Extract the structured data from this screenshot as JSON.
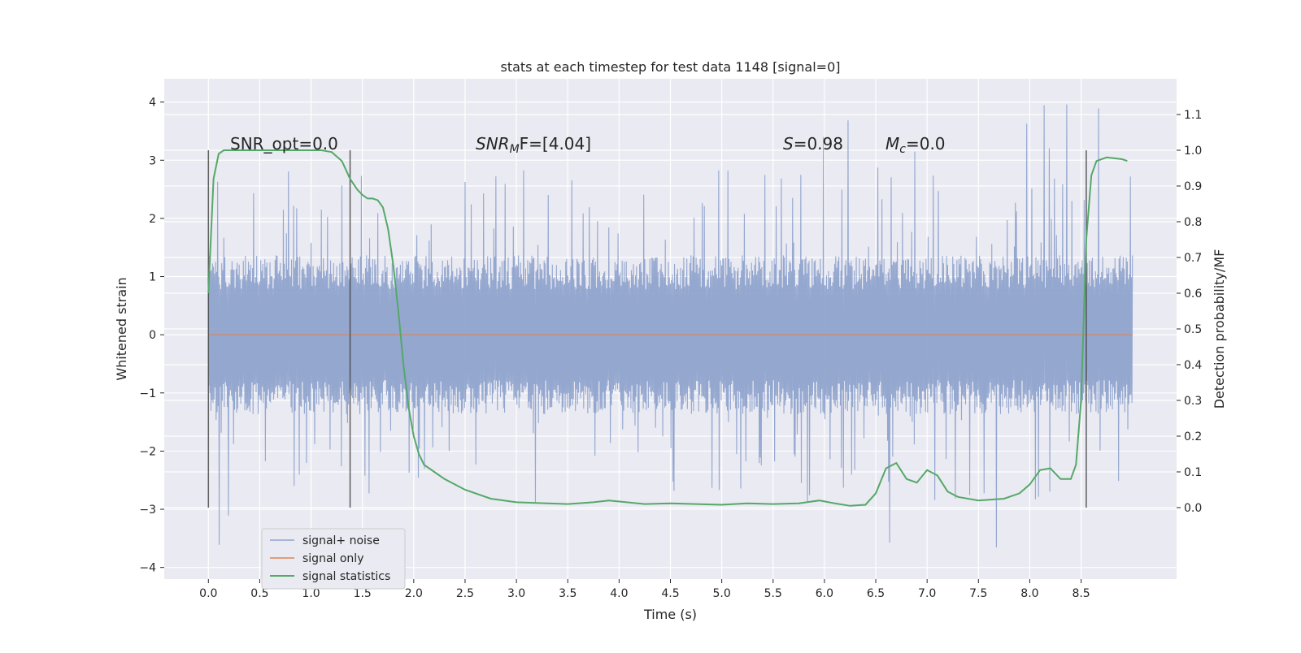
{
  "chart_data": {
    "type": "line",
    "title": "stats at each timestep for test data 1148 [signal=0]",
    "xlabel": "Time (s)",
    "ylabel": "Whitened strain",
    "ylabel_right": "Detection probability/MF",
    "xlim": [
      -0.43,
      9.43
    ],
    "ylim": [
      -4.2,
      4.4
    ],
    "ylim_right": [
      -0.2,
      1.2
    ],
    "x_ticks": [
      "0.0",
      "0.5",
      "1.0",
      "1.5",
      "2.0",
      "2.5",
      "3.0",
      "3.5",
      "4.0",
      "4.5",
      "5.0",
      "5.5",
      "6.0",
      "6.5",
      "7.0",
      "7.5",
      "8.0",
      "8.5"
    ],
    "y_ticks": [
      "4",
      "3",
      "2",
      "1",
      "0",
      "−1",
      "−2",
      "−3",
      "−4"
    ],
    "y_ticks_right": [
      "1.1",
      "1.0",
      "0.9",
      "0.8",
      "0.7",
      "0.6",
      "0.5",
      "0.4",
      "0.3",
      "0.2",
      "0.1",
      "0.0"
    ],
    "grid": true,
    "legend_position": "bottom-left",
    "annotations": {
      "snr_opt": "SNR_opt=0.0",
      "snr_mf_base": "SNR",
      "snr_mf_sub": "M",
      "snr_mf_rest": "F=[4.04]",
      "s_var": "S",
      "s_val": "=0.98",
      "mc_var": "M",
      "mc_sub": "c",
      "mc_val": "=0.0"
    },
    "vertical_markers_x": [
      0.0,
      1.38,
      8.55
    ],
    "colors": {
      "noise": "#8fa3cc",
      "signal": "#dd8452",
      "stats": "#55a868",
      "background": "#eaeaf2",
      "grid": "#ffffff"
    },
    "series": [
      {
        "name": "signal+ noise",
        "kind": "noise",
        "x_range": [
          0.0,
          9.0
        ],
        "envelope_core": 1.3,
        "typical_peak": 2.4,
        "max_value": 4.0,
        "min_value": -3.8
      },
      {
        "name": "signal only",
        "kind": "flat",
        "x": [
          0.0,
          9.0
        ],
        "y": [
          0.0,
          0.0
        ]
      },
      {
        "name": "signal statistics",
        "kind": "line",
        "axis": "right",
        "x": [
          0.0,
          0.05,
          0.1,
          0.15,
          0.25,
          0.5,
          0.75,
          1.0,
          1.1,
          1.2,
          1.3,
          1.38,
          1.45,
          1.5,
          1.55,
          1.6,
          1.65,
          1.7,
          1.75,
          1.8,
          1.85,
          1.9,
          1.95,
          2.0,
          2.05,
          2.1,
          2.2,
          2.3,
          2.5,
          2.75,
          3.0,
          3.5,
          3.75,
          3.9,
          4.25,
          4.5,
          5.0,
          5.25,
          5.5,
          5.75,
          5.95,
          6.1,
          6.25,
          6.4,
          6.5,
          6.6,
          6.7,
          6.8,
          6.9,
          7.0,
          7.1,
          7.2,
          7.3,
          7.5,
          7.75,
          7.9,
          8.0,
          8.1,
          8.2,
          8.3,
          8.4,
          8.45,
          8.5,
          8.55,
          8.6,
          8.65,
          8.75,
          8.9,
          8.95
        ],
        "y": [
          0.6,
          0.92,
          0.99,
          1.0,
          1.0,
          1.0,
          1.0,
          1.0,
          1.0,
          0.995,
          0.97,
          0.92,
          0.89,
          0.875,
          0.865,
          0.865,
          0.86,
          0.84,
          0.78,
          0.68,
          0.55,
          0.4,
          0.28,
          0.2,
          0.15,
          0.12,
          0.1,
          0.08,
          0.05,
          0.025,
          0.015,
          0.01,
          0.015,
          0.02,
          0.01,
          0.012,
          0.008,
          0.012,
          0.01,
          0.012,
          0.02,
          0.012,
          0.005,
          0.008,
          0.04,
          0.11,
          0.125,
          0.08,
          0.07,
          0.105,
          0.09,
          0.045,
          0.03,
          0.02,
          0.025,
          0.04,
          0.065,
          0.105,
          0.11,
          0.08,
          0.08,
          0.12,
          0.3,
          0.75,
          0.93,
          0.97,
          0.98,
          0.975,
          0.97
        ]
      }
    ]
  }
}
